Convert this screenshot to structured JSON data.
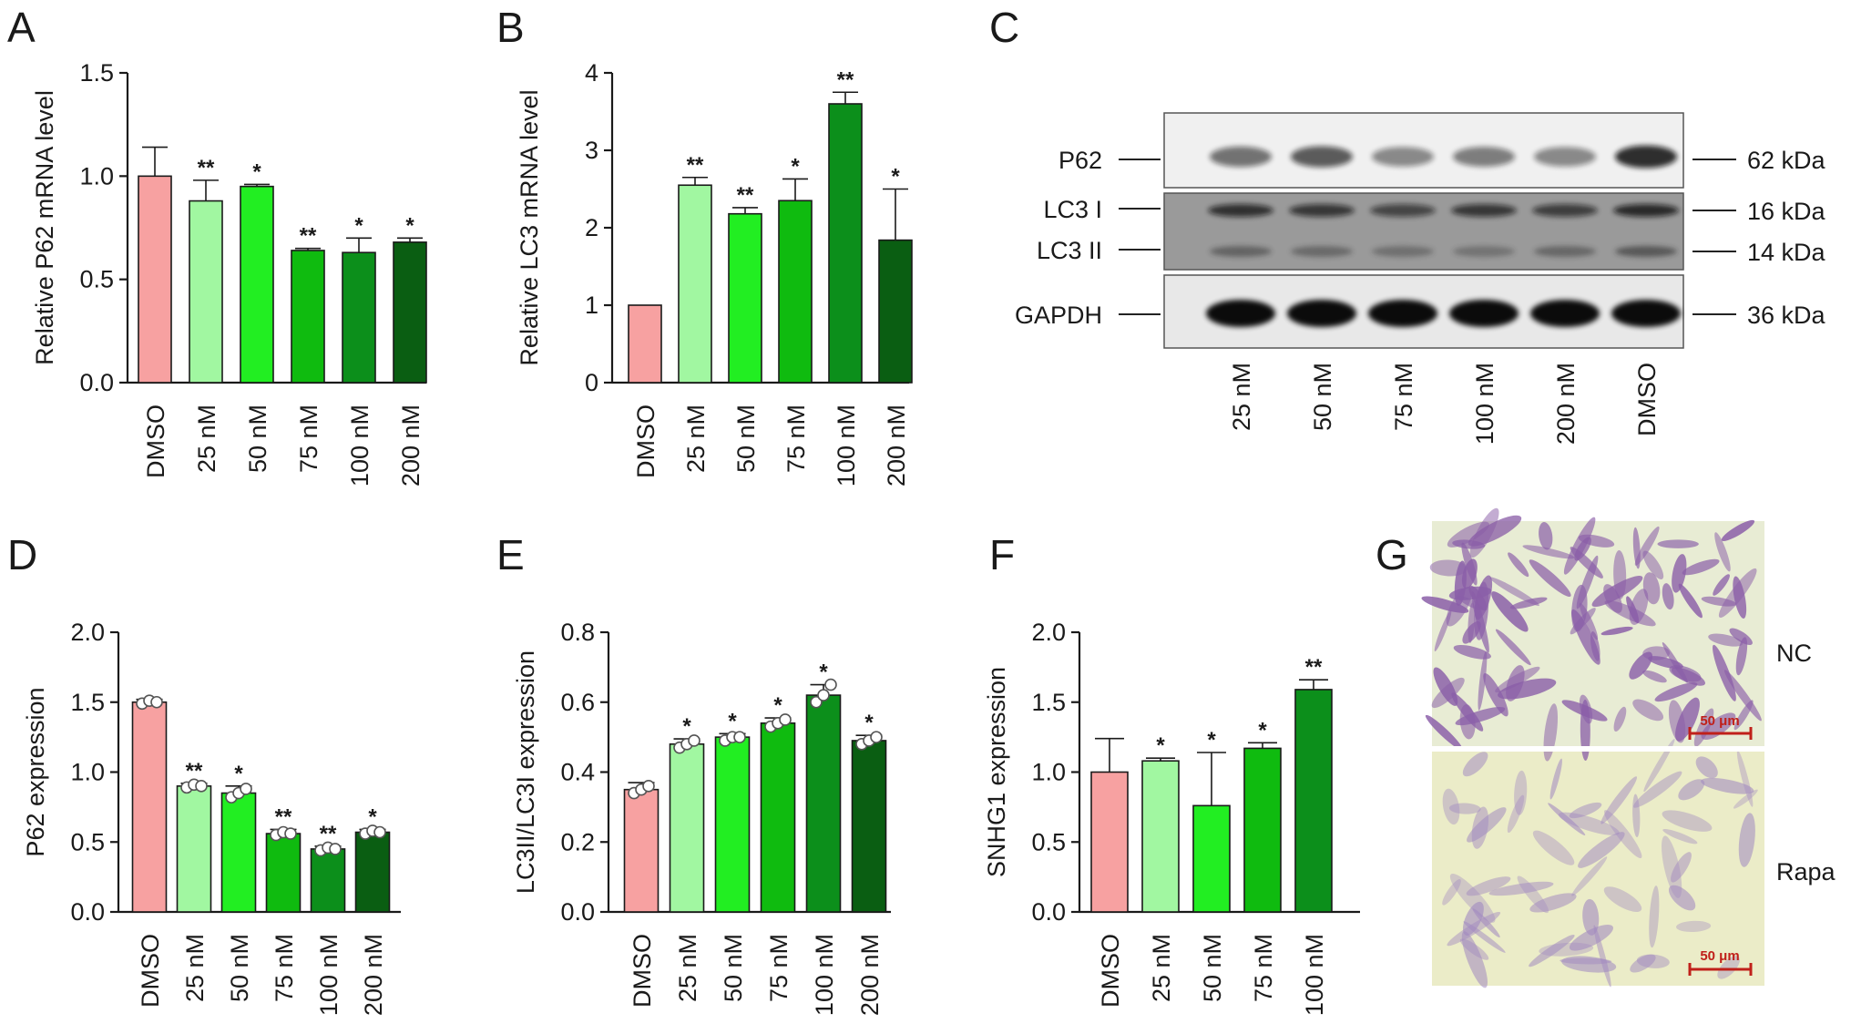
{
  "colors": {
    "DMSO": "#f7a1a1",
    "25 nM": "#a1f7a1",
    "50 nM": "#22ee22",
    "75 nM": "#0fbb0f",
    "100 nM": "#0c8f1b",
    "200 nM": "#0a5e12"
  },
  "chart_data": [
    {
      "panel": "A",
      "type": "bar",
      "ylabel": "Relative P62 mRNA level",
      "ylim": [
        0,
        1.5
      ],
      "yticks": [
        "0.0",
        "0.5",
        "1.0",
        "1.5"
      ],
      "categories": [
        "DMSO",
        "25 nM",
        "50 nM",
        "75 nM",
        "100 nM",
        "200 nM"
      ],
      "values": [
        1.0,
        0.88,
        0.95,
        0.64,
        0.63,
        0.68
      ],
      "errors": [
        0.14,
        0.1,
        0.01,
        0.01,
        0.07,
        0.02
      ],
      "significance": [
        "",
        "**",
        "*",
        "**",
        "*",
        "*"
      ]
    },
    {
      "panel": "B",
      "type": "bar",
      "ylabel": "Relative LC3 mRNA level",
      "ylim": [
        0,
        4
      ],
      "yticks": [
        "0",
        "1",
        "2",
        "3",
        "4"
      ],
      "categories": [
        "DMSO",
        "25 nM",
        "50 nM",
        "75 nM",
        "100 nM",
        "200 nM"
      ],
      "values": [
        1.0,
        2.55,
        2.18,
        2.35,
        3.6,
        1.84
      ],
      "errors": [
        0.0,
        0.1,
        0.08,
        0.28,
        0.15,
        0.66
      ],
      "significance": [
        "",
        "**",
        "**",
        "*",
        "**",
        "*"
      ]
    },
    {
      "panel": "D",
      "type": "bar",
      "ylabel": "P62 expression",
      "ylim": [
        0,
        2.0
      ],
      "yticks": [
        "0.0",
        "0.5",
        "1.0",
        "1.5",
        "2.0"
      ],
      "categories": [
        "DMSO",
        "25 nM",
        "50 nM",
        "75 nM",
        "100 nM",
        "200 nM"
      ],
      "values": [
        1.5,
        0.9,
        0.85,
        0.56,
        0.45,
        0.57
      ],
      "errors": [
        0.02,
        0.02,
        0.05,
        0.03,
        0.02,
        0.02
      ],
      "points": [
        [
          1.49,
          1.51,
          1.5
        ],
        [
          0.89,
          0.91,
          0.9
        ],
        [
          0.82,
          0.85,
          0.88
        ],
        [
          0.55,
          0.57,
          0.56
        ],
        [
          0.44,
          0.46,
          0.45
        ],
        [
          0.56,
          0.58,
          0.57
        ]
      ],
      "significance": [
        "",
        "**",
        "*",
        "**",
        "**",
        "*"
      ]
    },
    {
      "panel": "E",
      "type": "bar",
      "ylabel": "LC3II/LC3I expression",
      "ylim": [
        0,
        0.8
      ],
      "yticks": [
        "0.0",
        "0.2",
        "0.4",
        "0.6",
        "0.8"
      ],
      "categories": [
        "DMSO",
        "25 nM",
        "50 nM",
        "75 nM",
        "100 nM",
        "200 nM"
      ],
      "values": [
        0.35,
        0.48,
        0.5,
        0.54,
        0.62,
        0.49
      ],
      "errors": [
        0.02,
        0.015,
        0.01,
        0.015,
        0.03,
        0.015
      ],
      "points": [
        [
          0.34,
          0.35,
          0.36
        ],
        [
          0.47,
          0.48,
          0.49
        ],
        [
          0.49,
          0.5,
          0.5
        ],
        [
          0.53,
          0.54,
          0.55
        ],
        [
          0.6,
          0.62,
          0.65
        ],
        [
          0.48,
          0.49,
          0.5
        ]
      ],
      "significance": [
        "",
        "*",
        "*",
        "*",
        "*",
        "*"
      ]
    },
    {
      "panel": "F",
      "type": "bar",
      "ylabel": "SNHG1 expression",
      "ylim": [
        0,
        2.0
      ],
      "yticks": [
        "0.0",
        "0.5",
        "1.0",
        "1.5",
        "2.0"
      ],
      "categories": [
        "DMSO",
        "25 nM",
        "50 nM",
        "75 nM",
        "100 nM"
      ],
      "values": [
        1.0,
        1.08,
        0.76,
        1.17,
        1.59
      ],
      "errors": [
        0.24,
        0.02,
        0.38,
        0.04,
        0.07
      ],
      "significance": [
        "",
        "*",
        "*",
        "*",
        "**"
      ]
    }
  ],
  "western_blot": {
    "panel": "C",
    "left_labels": [
      "P62",
      "LC3 I",
      "LC3 II",
      "GAPDH"
    ],
    "right_labels": [
      "62 kDa",
      "16 kDa",
      "14 kDa",
      "36 kDa"
    ],
    "lanes": [
      "25 nM",
      "50 nM",
      "75 nM",
      "100 nM",
      "200 nM",
      "DMSO"
    ]
  },
  "micrograph": {
    "panel": "G",
    "labels": [
      "NC",
      "Rapa"
    ],
    "scale_bar": "50 μm"
  }
}
